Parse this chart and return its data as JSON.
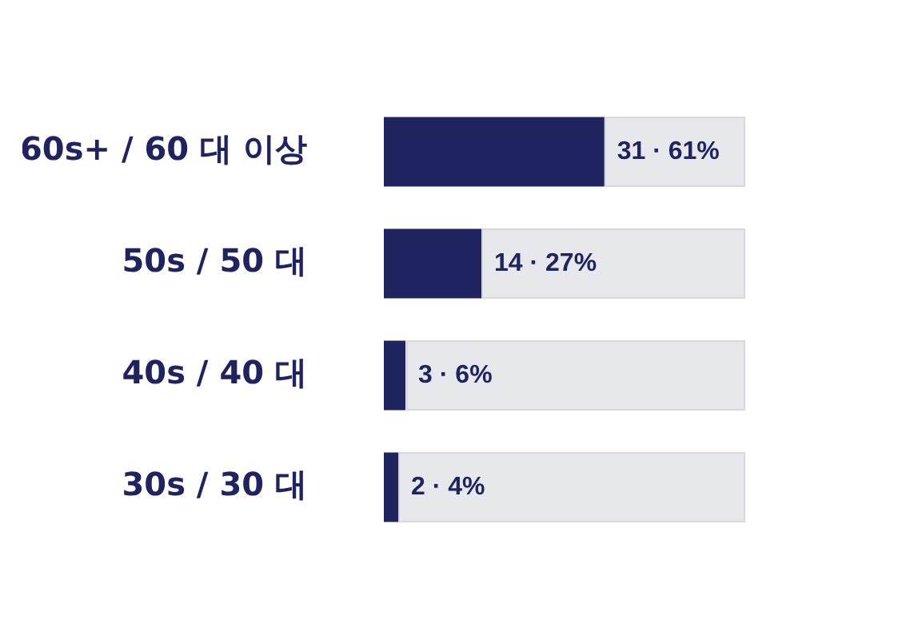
{
  "chart_data": {
    "type": "bar",
    "orientation": "horizontal",
    "categories": [
      "60s+ / 60 대 이상",
      "50s / 50 대",
      "40s / 40 대",
      "30s / 30 대"
    ],
    "series": [
      {
        "color": "#1f2461",
        "values": [
          61,
          27,
          6,
          4
        ],
        "value_labels": [
          "31 · 61%",
          "14 · 27%",
          "3 · 6%",
          "2 · 4%"
        ]
      }
    ],
    "xlim": [
      0,
      100
    ],
    "tick_labels": "y",
    "legend": false
  }
}
